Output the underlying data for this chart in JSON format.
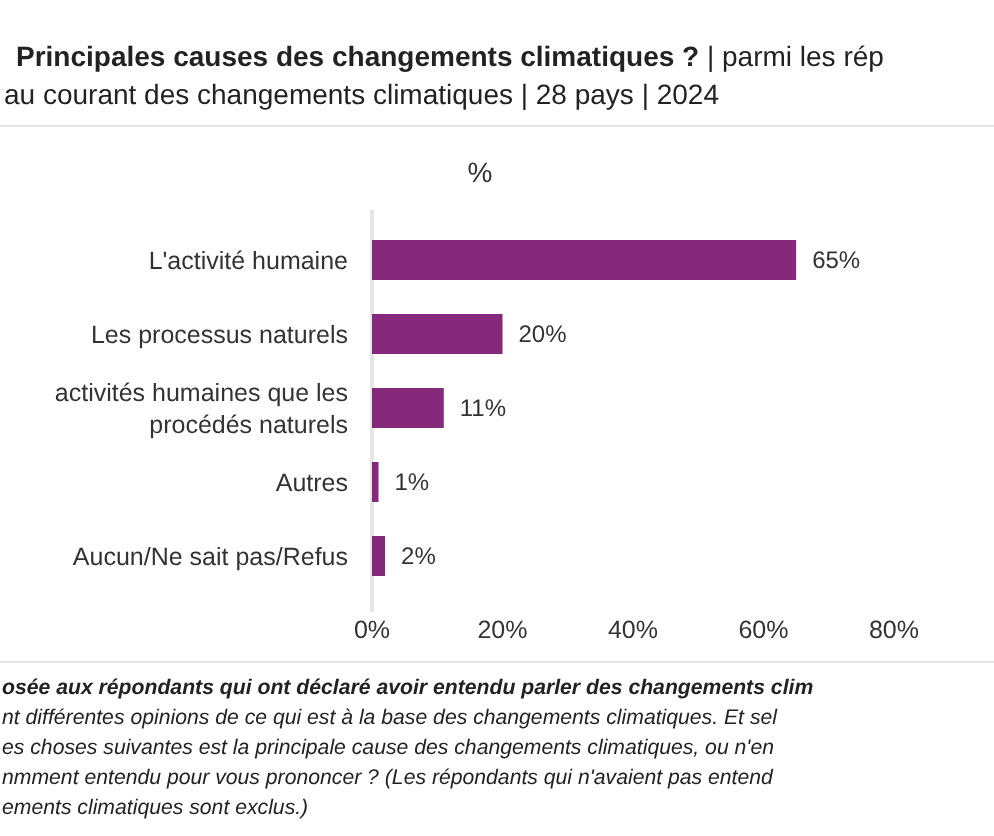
{
  "chart_data": {
    "type": "bar",
    "orientation": "horizontal",
    "title": "Principales causes des changements climatiques ?",
    "subtitle": "| parmi les rép\nau courant des changements climatiques | 28 pays | 2024",
    "xlabel": "%",
    "categories": [
      "L'activité humaine",
      "Les processus naturels",
      "activités humaines que les\nprocédés naturels",
      "Autres",
      "Aucun/Ne sait pas/Refus"
    ],
    "values": [
      65,
      20,
      11,
      1,
      2
    ],
    "color": "#86297b",
    "value_labels": [
      "65%",
      "20%",
      "11%",
      "1%",
      "2%"
    ],
    "xlim": [
      0,
      80
    ],
    "xticks": [
      {
        "value": 0,
        "label": "0%"
      },
      {
        "value": 20,
        "label": "20%"
      },
      {
        "value": 40,
        "label": "40%"
      },
      {
        "value": 60,
        "label": "60%"
      },
      {
        "value": 80,
        "label": "80%"
      }
    ],
    "grid": false,
    "annotations": [
      "osée aux répondants qui ont déclaré avoir entendu parler des changements clim",
      "nt différentes opinions de ce qui est à la base des changements climatiques. Et sel",
      "es choses suivantes est la principale cause des changements climatiques, ou n'en",
      "nmment entendu pour vous prononcer ? (Les répondants qui n'avaient pas entend",
      "ements climatiques sont exclus.)"
    ]
  }
}
